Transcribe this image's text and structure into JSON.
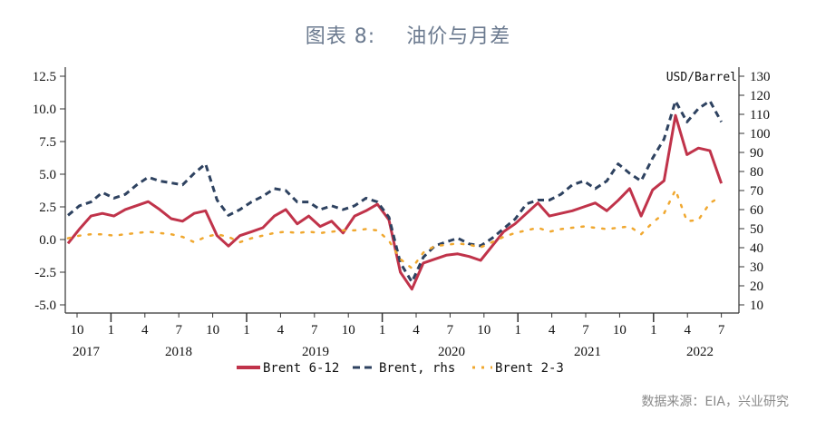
{
  "header": {
    "figure_number": "图表 8:",
    "title": "油价与月差"
  },
  "footer": {
    "source": "数据来源：EIA，兴业研究"
  },
  "chart_data": {
    "type": "line",
    "title": "油价与月差",
    "left_axis": {
      "label": "",
      "ticks": [
        "12.5",
        "10.0",
        "7.5",
        "5.0",
        "2.5",
        "0.0",
        "-2.5",
        "-5.0"
      ],
      "ylim": [
        -5.5,
        13.2
      ]
    },
    "right_axis": {
      "label": "USD/Barrel",
      "ticks": [
        "130",
        "120",
        "110",
        "100",
        "90",
        "80",
        "70",
        "60",
        "50",
        "40",
        "30",
        "20",
        "10"
      ],
      "ylim": [
        5,
        137
      ]
    },
    "x_ticks": [
      "10",
      "1",
      "4",
      "7",
      "10",
      "1",
      "4",
      "7",
      "10",
      "1",
      "4",
      "7",
      "10",
      "1",
      "4",
      "7",
      "10",
      "1",
      "4",
      "7"
    ],
    "x_years": [
      "2017",
      "2018",
      "2019",
      "2020",
      "2021",
      "2022"
    ],
    "grid": false,
    "legend_position": "bottom",
    "x": [
      "2017-10",
      "2017-11",
      "2017-12",
      "2018-01",
      "2018-02",
      "2018-03",
      "2018-04",
      "2018-05",
      "2018-06",
      "2018-07",
      "2018-08",
      "2018-09",
      "2018-10",
      "2018-11",
      "2018-12",
      "2019-01",
      "2019-02",
      "2019-03",
      "2019-04",
      "2019-05",
      "2019-06",
      "2019-07",
      "2019-08",
      "2019-09",
      "2019-10",
      "2019-11",
      "2019-12",
      "2020-01",
      "2020-02",
      "2020-03",
      "2020-04",
      "2020-05",
      "2020-06",
      "2020-07",
      "2020-08",
      "2020-09",
      "2020-10",
      "2020-11",
      "2020-12",
      "2021-01",
      "2021-02",
      "2021-03",
      "2021-04",
      "2021-05",
      "2021-06",
      "2021-07",
      "2021-08",
      "2021-09",
      "2021-10",
      "2021-11",
      "2021-12",
      "2022-01",
      "2022-02",
      "2022-03",
      "2022-04",
      "2022-05",
      "2022-06",
      "2022-07"
    ],
    "series": [
      {
        "name": "Brent 6-12",
        "axis": "left",
        "color": "#c0334a",
        "style": "solid",
        "values": [
          -0.3,
          0.8,
          1.8,
          2.0,
          1.8,
          2.3,
          2.6,
          2.9,
          2.3,
          1.6,
          1.4,
          2.0,
          2.2,
          0.3,
          -0.5,
          0.3,
          0.6,
          0.9,
          1.8,
          2.3,
          1.2,
          1.8,
          1.0,
          1.4,
          0.5,
          1.8,
          2.2,
          2.7,
          1.5,
          -2.5,
          -3.8,
          -1.8,
          -1.5,
          -1.2,
          -1.1,
          -1.3,
          -1.6,
          -0.5,
          0.6,
          1.2,
          2.0,
          2.8,
          1.8,
          2.0,
          2.2,
          2.5,
          2.8,
          2.2,
          3.0,
          3.9,
          1.8,
          3.8,
          4.5,
          9.5,
          6.5,
          7.0,
          6.8,
          4.3
        ]
      },
      {
        "name": "Brent, rhs",
        "axis": "right",
        "color": "#2e4260",
        "style": "dashed",
        "values": [
          57,
          62,
          64,
          69,
          66,
          68,
          73,
          77,
          75,
          74,
          73,
          79,
          84,
          65,
          57,
          60,
          64,
          67,
          71,
          70,
          64,
          64,
          60,
          62,
          60,
          62,
          66,
          64,
          56,
          32,
          22,
          35,
          41,
          43,
          45,
          42,
          41,
          45,
          50,
          55,
          63,
          65,
          65,
          68,
          73,
          75,
          71,
          75,
          84,
          79,
          75,
          87,
          97,
          117,
          106,
          113,
          117,
          106
        ]
      },
      {
        "name": "Brent 2-3",
        "axis": "left",
        "color": "#f0a830",
        "style": "dotted",
        "values": [
          0.1,
          0.3,
          0.4,
          0.4,
          0.3,
          0.4,
          0.5,
          0.6,
          0.5,
          0.4,
          0.2,
          -0.2,
          0.2,
          0.4,
          0.2,
          -0.2,
          0.1,
          0.3,
          0.5,
          0.6,
          0.5,
          0.6,
          0.5,
          0.6,
          0.7,
          0.7,
          0.8,
          0.7,
          -0.1,
          -1.5,
          -2.2,
          -1.0,
          -0.5,
          -0.4,
          -0.3,
          -0.4,
          -0.6,
          -0.2,
          0.2,
          0.5,
          0.7,
          0.9,
          0.6,
          0.8,
          0.9,
          1.0,
          0.9,
          0.8,
          0.9,
          1.0,
          0.4,
          1.3,
          2.0,
          3.8,
          1.4,
          1.5,
          2.8,
          3.3
        ]
      }
    ]
  }
}
